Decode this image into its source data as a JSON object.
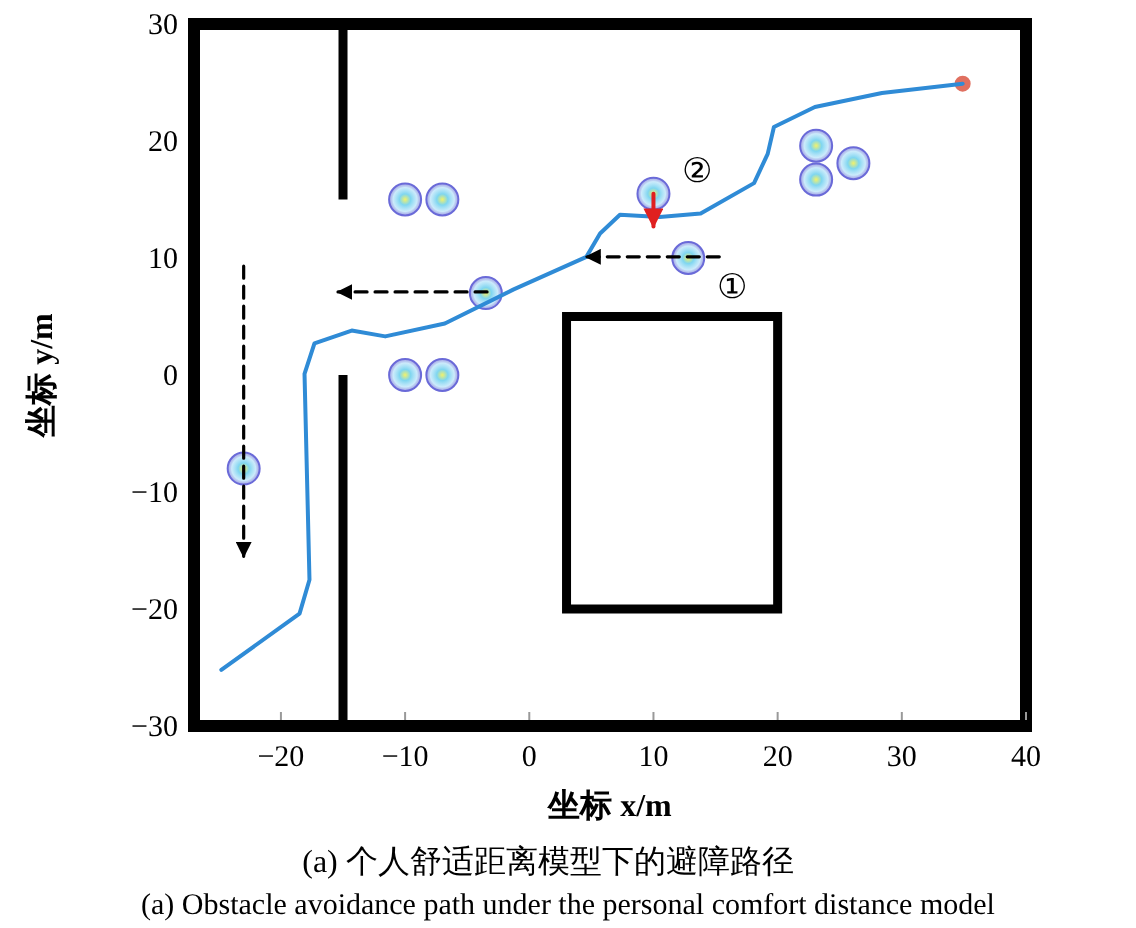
{
  "chart_data": {
    "type": "line",
    "title": "(a) 个人舒适距离模型下的避障路径",
    "subtitle": "(a) Obstacle avoidance path under the personal comfort distance model",
    "xlabel": "坐标 x/m",
    "ylabel": "坐标 y/m",
    "xlim": [
      -27,
      40
    ],
    "ylim": [
      -30,
      30
    ],
    "xticks": [
      -20,
      -10,
      0,
      10,
      20,
      30,
      40
    ],
    "yticks": [
      -30,
      -20,
      -10,
      0,
      10,
      20,
      30
    ],
    "grid": false,
    "series": [
      {
        "type": "scatter",
        "color": "#6a6ad8",
        "marker": "circle",
        "x": [
          -10,
          -7,
          -10,
          -7,
          -3.5,
          -23,
          10,
          12.8,
          23.1,
          26.1,
          23.1
        ],
        "values": [
          15,
          15,
          0,
          0,
          7,
          -8,
          15.5,
          10,
          19.6,
          18.1,
          16.7
        ]
      },
      {
        "type": "scatter",
        "color": "#e07060",
        "marker": "circle",
        "x": [
          34.9
        ],
        "values": [
          24.9
        ]
      },
      {
        "color": "#2f8bd6",
        "line_style": "solid",
        "x": [
          -24.8,
          -18.5,
          -17.7,
          -18.1,
          -17.3,
          -14.3,
          -11.6,
          -6.8,
          -1.3,
          4.6,
          5.7,
          7.3,
          10.5,
          13.8,
          18.1,
          19.2,
          19.7,
          23.0,
          28.4,
          34.9
        ],
        "values": [
          -25.2,
          -20.4,
          -17.5,
          0.1,
          2.7,
          3.8,
          3.3,
          4.4,
          7.3,
          10.1,
          12.1,
          13.7,
          13.5,
          13.8,
          16.4,
          18.9,
          21.2,
          22.9,
          24.1,
          24.9
        ]
      },
      {
        "color": "#000000",
        "line_style": "dashed",
        "x": [
          -23,
          -23
        ],
        "values": [
          9.3,
          -15.5
        ]
      },
      {
        "color": "#000000",
        "line_style": "dashed",
        "x": [
          -3.4,
          -15.4
        ],
        "values": [
          7.1,
          7.1
        ]
      },
      {
        "color": "#000000",
        "line_style": "dashed",
        "x": [
          15.3,
          4.6
        ],
        "values": [
          10.1,
          10.1
        ]
      },
      {
        "color": "#e02020",
        "line_style": "solid",
        "x": [
          10,
          10
        ],
        "values": [
          15.5,
          12.7
        ]
      }
    ],
    "annotations": [
      {
        "text": "①",
        "x": 12.8,
        "y": 10
      },
      {
        "text": "②",
        "x": 10,
        "y": 15.5
      }
    ]
  }
}
